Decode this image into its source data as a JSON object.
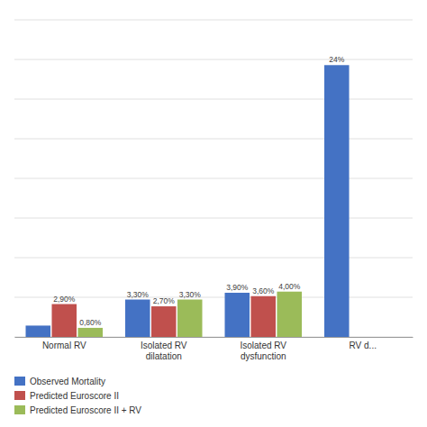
{
  "chart_data": {
    "type": "bar",
    "categories": [
      "Normal RV",
      "Isolated RV dilatation",
      "Isolated RV dysfunction",
      "RV d..."
    ],
    "series": [
      {
        "name": "Observed Mortality",
        "color": "#4472C4",
        "values": [
          1.0,
          3.3,
          3.9,
          24.0
        ],
        "value_labels": [
          null,
          "3,30%",
          "3,90%",
          "24%"
        ]
      },
      {
        "name": "Predicted Euroscore II",
        "color": "#C0504D",
        "values": [
          2.9,
          2.7,
          3.6,
          0
        ],
        "value_labels": [
          "2,90%",
          "2,70%",
          "3,60%",
          null
        ]
      },
      {
        "name": "Predicted Euroscore II + RV",
        "color": "#9BBB59",
        "values": [
          0.8,
          3.3,
          4.0,
          0
        ],
        "value_labels": [
          "0,80%",
          "3,30%",
          "4,00%",
          null
        ]
      }
    ],
    "ylim": [
      0,
      28
    ],
    "yticks": [
      0,
      3.5,
      7,
      10.5,
      14,
      17.5,
      21,
      24.5,
      28
    ],
    "grid": true,
    "tick_labels": "x",
    "data_labels": true,
    "legend": "bottom"
  }
}
